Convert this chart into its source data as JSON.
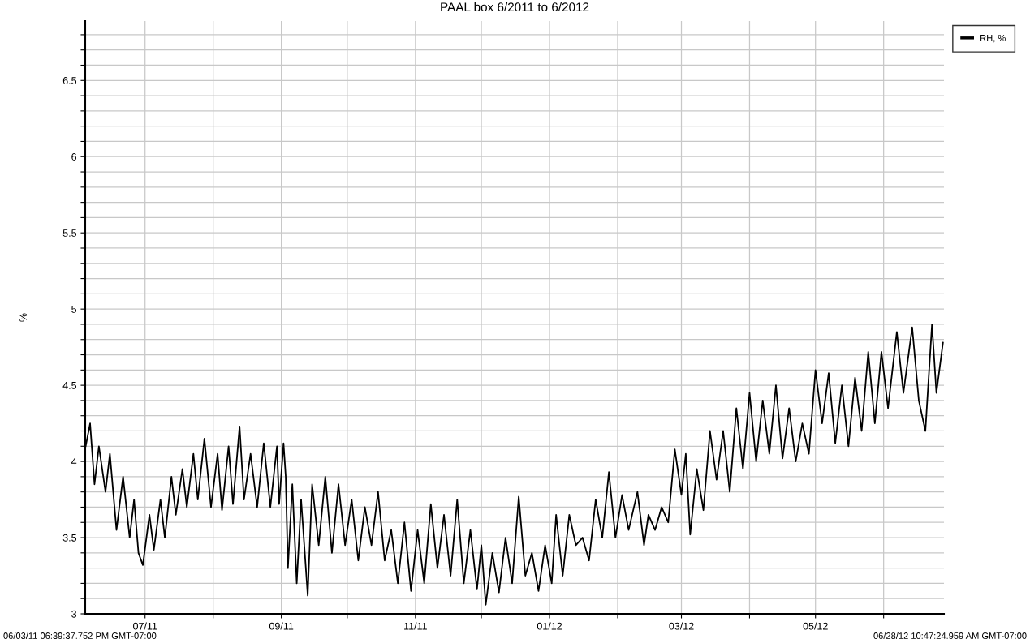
{
  "chart_data": {
    "type": "line",
    "title": "PAAL box 6/2011 to 6/2012",
    "ylabel": "%",
    "annotations": [
      "06/03/11 06:39:37.752 PM GMT-07:00",
      "06/28/12 10:47:24.959 AM GMT-07:00"
    ],
    "xlim": [
      "2011-06-03T18:39",
      "2012-06-28T10:47"
    ],
    "xticks": [
      {
        "value": "2011-07-01",
        "label": "07/11"
      },
      {
        "value": "2011-08-01",
        "label": null
      },
      {
        "value": "2011-09-01",
        "label": "09/11"
      },
      {
        "value": "2011-10-01",
        "label": null
      },
      {
        "value": "2011-11-01",
        "label": "11/11"
      },
      {
        "value": "2011-12-01",
        "label": null
      },
      {
        "value": "2012-01-01",
        "label": "01/12"
      },
      {
        "value": "2012-02-01",
        "label": null
      },
      {
        "value": "2012-03-01",
        "label": "03/12"
      },
      {
        "value": "2012-04-01",
        "label": null
      },
      {
        "value": "2012-05-01",
        "label": "05/12"
      },
      {
        "value": "2012-06-01",
        "label": null
      }
    ],
    "ylim": [
      3,
      6.89
    ],
    "yticks": [
      3,
      {
        "value": 3.1,
        "label": null
      },
      {
        "value": 3.2,
        "label": null
      },
      {
        "value": 3.3,
        "label": null
      },
      {
        "value": 3.4,
        "label": null
      },
      3.5,
      {
        "value": 3.6,
        "label": null
      },
      {
        "value": 3.7,
        "label": null
      },
      {
        "value": 3.8,
        "label": null
      },
      {
        "value": 3.9,
        "label": null
      },
      4,
      {
        "value": 4.1,
        "label": null
      },
      {
        "value": 4.2,
        "label": null
      },
      {
        "value": 4.3,
        "label": null
      },
      {
        "value": 4.4,
        "label": null
      },
      4.5,
      {
        "value": 4.6,
        "label": null
      },
      {
        "value": 4.7,
        "label": null
      },
      {
        "value": 4.8,
        "label": null
      },
      {
        "value": 4.9,
        "label": null
      },
      5,
      {
        "value": 5.1,
        "label": null
      },
      {
        "value": 5.2,
        "label": null
      },
      {
        "value": 5.3,
        "label": null
      },
      {
        "value": 5.4,
        "label": null
      },
      5.5,
      {
        "value": 5.6,
        "label": null
      },
      {
        "value": 5.7,
        "label": null
      },
      {
        "value": 5.8,
        "label": null
      },
      {
        "value": 5.9,
        "label": null
      },
      6,
      {
        "value": 6.1,
        "label": null
      },
      {
        "value": 6.2,
        "label": null
      },
      {
        "value": 6.3,
        "label": null
      },
      {
        "value": 6.4,
        "label": null
      },
      6.5,
      {
        "value": 6.6,
        "label": null
      },
      {
        "value": 6.7,
        "label": null
      },
      {
        "value": 6.8,
        "label": null
      }
    ],
    "grid": true,
    "legend": "top right",
    "series": [
      {
        "name": "RH, %",
        "color": "#000000",
        "x": [
          "2011-06-04",
          "2011-06-06",
          "2011-06-08",
          "2011-06-10",
          "2011-06-13",
          "2011-06-15",
          "2011-06-18",
          "2011-06-21",
          "2011-06-24",
          "2011-06-26",
          "2011-06-28",
          "2011-06-30",
          "2011-07-03",
          "2011-07-05",
          "2011-07-08",
          "2011-07-10",
          "2011-07-13",
          "2011-07-15",
          "2011-07-18",
          "2011-07-20",
          "2011-07-23",
          "2011-07-25",
          "2011-07-28",
          "2011-07-31",
          "2011-08-03",
          "2011-08-05",
          "2011-08-08",
          "2011-08-10",
          "2011-08-13",
          "2011-08-15",
          "2011-08-18",
          "2011-08-21",
          "2011-08-24",
          "2011-08-27",
          "2011-08-30",
          "2011-08-31",
          "2011-09-02",
          "2011-09-03",
          "2011-09-04",
          "2011-09-06",
          "2011-09-08",
          "2011-09-10",
          "2011-09-13",
          "2011-09-15",
          "2011-09-18",
          "2011-09-21",
          "2011-09-24",
          "2011-09-27",
          "2011-09-30",
          "2011-10-03",
          "2011-10-06",
          "2011-10-09",
          "2011-10-12",
          "2011-10-15",
          "2011-10-18",
          "2011-10-21",
          "2011-10-24",
          "2011-10-27",
          "2011-10-30",
          "2011-11-02",
          "2011-11-05",
          "2011-11-08",
          "2011-11-11",
          "2011-11-14",
          "2011-11-17",
          "2011-11-20",
          "2011-11-23",
          "2011-11-26",
          "2011-11-29",
          "2011-12-01",
          "2011-12-03",
          "2011-12-06",
          "2011-12-09",
          "2011-12-12",
          "2011-12-15",
          "2011-12-18",
          "2011-12-21",
          "2011-12-24",
          "2011-12-27",
          "2011-12-30",
          "2012-01-02",
          "2012-01-04",
          "2012-01-07",
          "2012-01-10",
          "2012-01-13",
          "2012-01-16",
          "2012-01-19",
          "2012-01-22",
          "2012-01-25",
          "2012-01-28",
          "2012-01-31",
          "2012-02-03",
          "2012-02-06",
          "2012-02-10",
          "2012-02-13",
          "2012-02-15",
          "2012-02-18",
          "2012-02-21",
          "2012-02-24",
          "2012-02-27",
          "2012-03-01",
          "2012-03-03",
          "2012-03-05",
          "2012-03-08",
          "2012-03-11",
          "2012-03-14",
          "2012-03-17",
          "2012-03-20",
          "2012-03-23",
          "2012-03-26",
          "2012-03-29",
          "2012-04-01",
          "2012-04-04",
          "2012-04-07",
          "2012-04-10",
          "2012-04-13",
          "2012-04-16",
          "2012-04-19",
          "2012-04-22",
          "2012-04-25",
          "2012-04-28",
          "2012-05-01",
          "2012-05-04",
          "2012-05-07",
          "2012-05-10",
          "2012-05-13",
          "2012-05-16",
          "2012-05-19",
          "2012-05-22",
          "2012-05-25",
          "2012-05-28",
          "2012-05-31",
          "2012-06-03",
          "2012-06-07",
          "2012-06-10",
          "2012-06-14",
          "2012-06-17",
          "2012-06-20",
          "2012-06-23",
          "2012-06-25",
          "2012-06-28"
        ],
        "values": [
          4.1,
          4.25,
          3.85,
          4.1,
          3.8,
          4.05,
          3.55,
          3.9,
          3.5,
          3.75,
          3.4,
          3.32,
          3.65,
          3.42,
          3.75,
          3.5,
          3.9,
          3.65,
          3.95,
          3.7,
          4.05,
          3.75,
          4.15,
          3.7,
          4.05,
          3.68,
          4.1,
          3.72,
          4.23,
          3.75,
          4.05,
          3.7,
          4.12,
          3.7,
          4.1,
          3.72,
          4.12,
          3.9,
          3.3,
          3.85,
          3.2,
          3.75,
          3.12,
          3.85,
          3.45,
          3.9,
          3.4,
          3.85,
          3.45,
          3.75,
          3.35,
          3.7,
          3.45,
          3.8,
          3.35,
          3.55,
          3.2,
          3.6,
          3.15,
          3.55,
          3.2,
          3.72,
          3.3,
          3.65,
          3.25,
          3.75,
          3.2,
          3.55,
          3.16,
          3.45,
          3.06,
          3.4,
          3.14,
          3.5,
          3.2,
          3.77,
          3.25,
          3.4,
          3.15,
          3.45,
          3.2,
          3.65,
          3.25,
          3.65,
          3.45,
          3.5,
          3.35,
          3.75,
          3.5,
          3.93,
          3.5,
          3.78,
          3.55,
          3.8,
          3.45,
          3.65,
          3.55,
          3.7,
          3.6,
          4.08,
          3.78,
          4.05,
          3.52,
          3.95,
          3.68,
          4.2,
          3.88,
          4.2,
          3.8,
          4.35,
          3.95,
          4.45,
          4.0,
          4.4,
          4.05,
          4.5,
          4.02,
          4.35,
          4.0,
          4.25,
          4.05,
          4.6,
          4.25,
          4.58,
          4.12,
          4.5,
          4.1,
          4.55,
          4.2,
          4.72,
          4.25,
          4.72,
          4.35,
          4.85,
          4.45,
          4.88,
          4.4,
          4.2,
          4.9,
          4.45,
          4.78
        ]
      }
    ]
  }
}
